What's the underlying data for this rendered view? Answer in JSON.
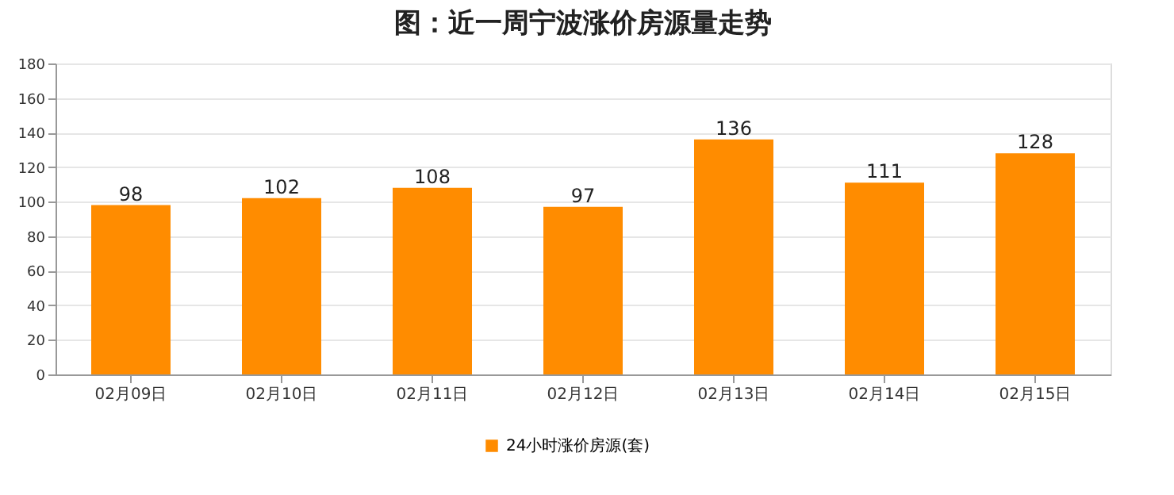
{
  "chart_data": {
    "type": "bar",
    "title": "图：近一周宁波涨价房源量走势",
    "categories": [
      "02月09日",
      "02月10日",
      "02月11日",
      "02月12日",
      "02月13日",
      "02月14日",
      "02月15日"
    ],
    "series": [
      {
        "name": "24小时涨价房源(套)",
        "color": "#ff8c00",
        "values": [
          98,
          102,
          108,
          97,
          136,
          111,
          128
        ]
      }
    ],
    "ylim": [
      0,
      180
    ],
    "yticks": [
      0,
      20,
      40,
      60,
      80,
      100,
      120,
      140,
      160,
      180
    ],
    "grid": "y",
    "legend": "bottom",
    "data_labels": true
  }
}
